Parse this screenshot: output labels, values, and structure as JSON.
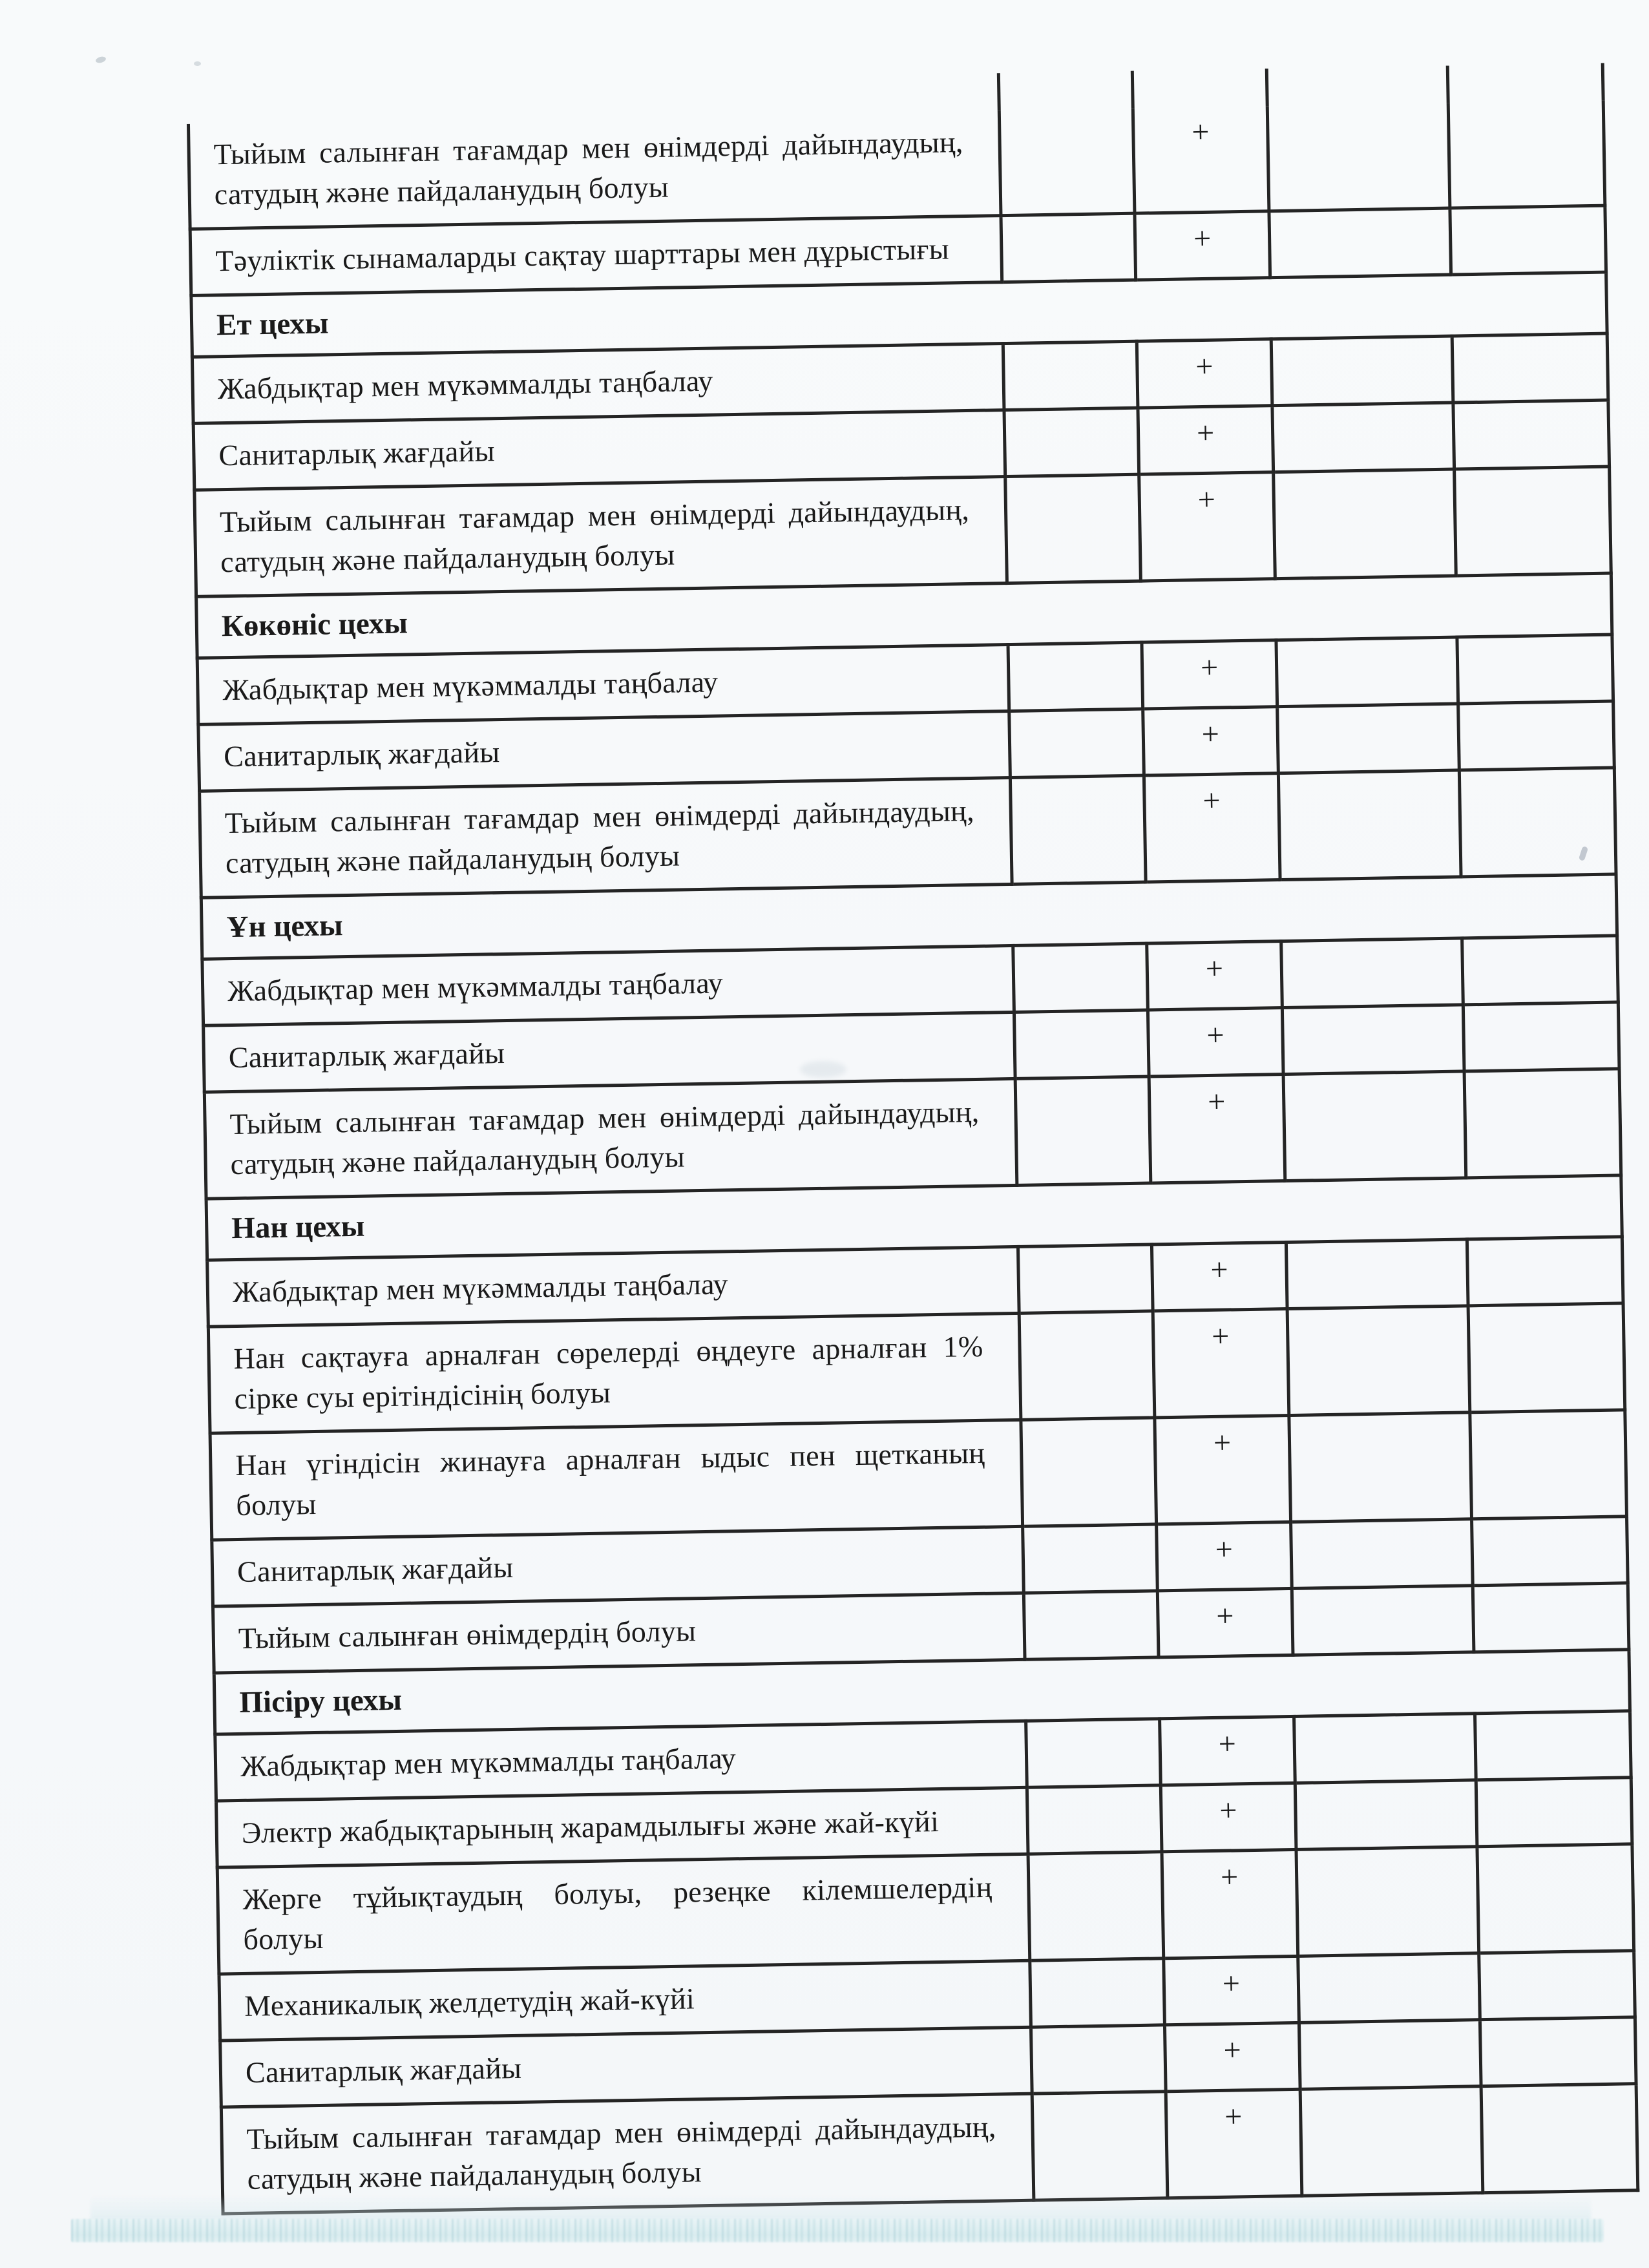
{
  "document": {
    "language": "kk",
    "mark_symbol": "+",
    "mark_columns": 4,
    "sections": [
      {
        "header": null,
        "rows": [
          {
            "lines": [
              "Тыйым салынған тағамдар мен өнімдерді дайындаудың,",
              "сатудың және пайдаланудың болуы"
            ],
            "marks": [
              "",
              "+",
              "",
              ""
            ]
          },
          {
            "lines": [
              "Тәуліктік сынамаларды сақтау шарттары мен дұрыстығы"
            ],
            "marks": [
              "",
              "+",
              "",
              ""
            ]
          }
        ]
      },
      {
        "header": "Ет цехы",
        "rows": [
          {
            "lines": [
              "Жабдықтар мен мүкәммалды таңбалау"
            ],
            "marks": [
              "",
              "+",
              "",
              ""
            ]
          },
          {
            "lines": [
              "Санитарлық жағдайы"
            ],
            "marks": [
              "",
              "+",
              "",
              ""
            ]
          },
          {
            "lines": [
              "Тыйым салынған тағамдар мен өнімдерді дайындаудың,",
              "сатудың және пайдаланудың болуы"
            ],
            "marks": [
              "",
              "+",
              "",
              ""
            ]
          }
        ]
      },
      {
        "header": "Көкөніс цехы",
        "rows": [
          {
            "lines": [
              "Жабдықтар мен мүкәммалды таңбалау"
            ],
            "marks": [
              "",
              "+",
              "",
              ""
            ]
          },
          {
            "lines": [
              "Санитарлық жағдайы"
            ],
            "marks": [
              "",
              "+",
              "",
              ""
            ]
          },
          {
            "lines": [
              "Тыйым салынған тағамдар мен өнімдерді дайындаудың,",
              "сатудың және пайдаланудың болуы"
            ],
            "marks": [
              "",
              "+",
              "",
              ""
            ]
          }
        ]
      },
      {
        "header": "Ұн цехы",
        "rows": [
          {
            "lines": [
              "Жабдықтар мен мүкәммалды таңбалау"
            ],
            "marks": [
              "",
              "+",
              "",
              ""
            ]
          },
          {
            "lines": [
              "Санитарлық жағдайы"
            ],
            "marks": [
              "",
              "+",
              "",
              ""
            ]
          },
          {
            "lines": [
              "Тыйым салынған тағамдар мен өнімдерді дайындаудың,",
              "сатудың және пайдаланудың болуы"
            ],
            "marks": [
              "",
              "+",
              "",
              ""
            ]
          }
        ]
      },
      {
        "header": "Нан цехы",
        "rows": [
          {
            "lines": [
              "Жабдықтар мен мүкәммалды таңбалау"
            ],
            "marks": [
              "",
              "+",
              "",
              ""
            ]
          },
          {
            "lines": [
              "Нан сақтауға арналған сөрелерді өңдеуге арналған 1%",
              "сірке суы ерітіндісінің болуы"
            ],
            "marks": [
              "",
              "+",
              "",
              ""
            ]
          },
          {
            "lines": [
              "Нан үгіндісін жинауға арналған ыдыс пен щетканың",
              "болуы"
            ],
            "marks": [
              "",
              "+",
              "",
              ""
            ]
          },
          {
            "lines": [
              "Санитарлық жағдайы"
            ],
            "marks": [
              "",
              "+",
              "",
              ""
            ]
          },
          {
            "lines": [
              "Тыйым салынған өнімдердің болуы"
            ],
            "marks": [
              "",
              "+",
              "",
              ""
            ]
          }
        ]
      },
      {
        "header": "Пісіру цехы",
        "rows": [
          {
            "lines": [
              "Жабдықтар мен мүкәммалды таңбалау"
            ],
            "marks": [
              "",
              "+",
              "",
              ""
            ]
          },
          {
            "lines": [
              "Электр жабдықтарының жарамдылығы және жай-күйі"
            ],
            "marks": [
              "",
              "+",
              "",
              ""
            ]
          },
          {
            "lines": [
              "Жерге тұйықтаудың болуы, резеңке кілемшелердің",
              "болуы"
            ],
            "marks": [
              "",
              "+",
              "",
              ""
            ]
          },
          {
            "lines": [
              "Механикалық желдетудің жай-күйі"
            ],
            "marks": [
              "",
              "+",
              "",
              ""
            ]
          },
          {
            "lines": [
              "Санитарлық жағдайы"
            ],
            "marks": [
              "",
              "+",
              "",
              ""
            ]
          },
          {
            "lines": [
              "Тыйым салынған тағамдар мен өнімдерді дайындаудың,",
              "сатудың және пайдаланудың болуы"
            ],
            "marks": [
              "",
              "+",
              "",
              ""
            ]
          }
        ]
      }
    ]
  }
}
